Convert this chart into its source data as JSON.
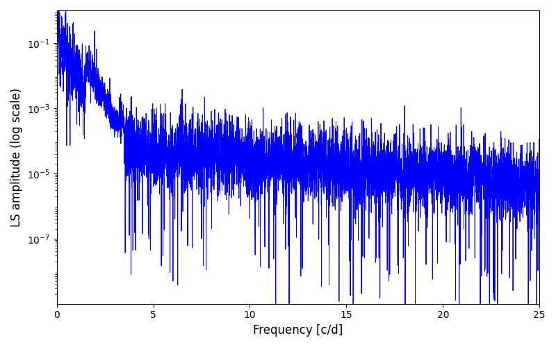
{
  "title": "",
  "xlabel": "Frequency [c/d]",
  "ylabel": "LS amplitude (log scale)",
  "xlim": [
    0,
    25
  ],
  "ylim": [
    1e-09,
    1.0
  ],
  "line_color": "#0000ff",
  "line_width": 0.7,
  "yscale": "log",
  "figsize": [
    8.0,
    5.0
  ],
  "dpi": 100,
  "yticks": [
    1e-07,
    1e-05,
    0.001,
    0.1
  ],
  "xticks": [
    0,
    5,
    10,
    15,
    20,
    25
  ],
  "seed": 12345,
  "n_points": 5000,
  "freq_max": 25.0,
  "peak_amplitude": 0.25,
  "noise_log_std": 0.6,
  "background_color": "#ffffff"
}
